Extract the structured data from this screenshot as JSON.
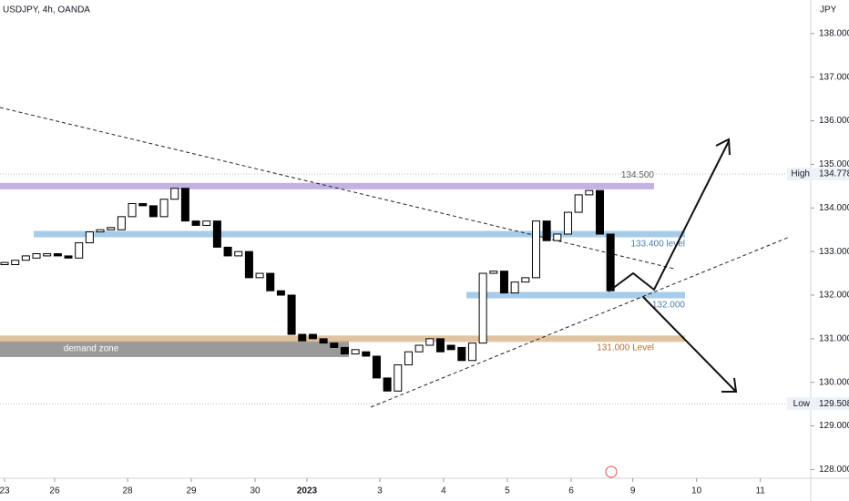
{
  "chart_data": {
    "type": "candlestick",
    "title": "USDJPY, 4h, OANDA",
    "y_unit": "JPY",
    "open": [
      132.7,
      132.7,
      132.8,
      132.85,
      132.9,
      132.95,
      132.9,
      132.85,
      133.2,
      133.45,
      133.5,
      133.5,
      133.8,
      134.1,
      134.05,
      133.8,
      134.2,
      134.45,
      133.7,
      133.6,
      133.7,
      133.1,
      132.9,
      133.0,
      132.4,
      132.5,
      132.1,
      132.0,
      131.1,
      131.1,
      131.0,
      130.9,
      130.8,
      130.65,
      130.7,
      130.6,
      130.1,
      129.8,
      130.4,
      130.7,
      130.85,
      131.0,
      130.85,
      130.8,
      130.5,
      130.9,
      132.5,
      132.55,
      132.05,
      132.3,
      132.4,
      133.7,
      133.25,
      133.4,
      133.9,
      134.3,
      134.4,
      133.4
    ],
    "high": {
      "name": "High",
      "value": 134.778,
      "label": "134.778"
    },
    "low": {
      "name": "Low",
      "value": 129.508,
      "label": "129.508"
    },
    "close": [
      132.75,
      132.8,
      132.9,
      132.95,
      132.95,
      132.9,
      132.85,
      133.2,
      133.45,
      133.5,
      133.55,
      133.8,
      134.1,
      134.05,
      133.8,
      134.2,
      134.45,
      133.7,
      133.6,
      133.7,
      133.1,
      132.9,
      133.0,
      132.4,
      132.5,
      132.1,
      132.0,
      131.1,
      130.95,
      131.0,
      130.9,
      130.8,
      130.65,
      130.75,
      130.6,
      130.1,
      129.8,
      130.4,
      130.7,
      130.85,
      131.0,
      130.7,
      130.75,
      130.5,
      130.9,
      132.5,
      132.55,
      132.05,
      132.3,
      132.4,
      133.7,
      133.25,
      133.4,
      133.9,
      134.3,
      134.4,
      133.4,
      132.1
    ],
    "xlim": [
      -0.43,
      75.84
    ],
    "ylim": [
      127.8,
      138.77
    ],
    "xticks": [
      {
        "value": 0,
        "label": "23"
      },
      {
        "value": 4.71,
        "label": "26"
      },
      {
        "value": 11.57,
        "label": "28"
      },
      {
        "value": 17.57,
        "label": "29"
      },
      {
        "value": 23.57,
        "label": "30"
      },
      {
        "value": 28.45,
        "label": "2023"
      },
      {
        "value": 35.3,
        "label": "3"
      },
      {
        "value": 41.3,
        "label": "4"
      },
      {
        "value": 47.3,
        "label": "5"
      },
      {
        "value": 53.3,
        "label": "6"
      },
      {
        "value": 59.1,
        "label": "9"
      },
      {
        "value": 65.1,
        "label": "10"
      },
      {
        "value": 71.1,
        "label": "11"
      }
    ],
    "yticks": [
      {
        "value": 128,
        "label": "128.000"
      },
      {
        "value": 129,
        "label": "129.000"
      },
      {
        "value": 130,
        "label": "130.000"
      },
      {
        "value": 131,
        "label": "131.000"
      },
      {
        "value": 132,
        "label": "132.000"
      },
      {
        "value": 133,
        "label": "133.000"
      },
      {
        "value": 134,
        "label": "134.000"
      },
      {
        "value": 135,
        "label": "135.000"
      },
      {
        "value": 136,
        "label": "136.000"
      },
      {
        "value": 137,
        "label": "137.000"
      },
      {
        "value": 138,
        "label": "138.000"
      }
    ],
    "levels": [
      {
        "value": 134.5,
        "label": "134.500",
        "color": "#b39ddb"
      },
      {
        "value": 133.4,
        "label": "133.400 level",
        "color": "#90bfe4"
      },
      {
        "value": 132.0,
        "label": "132.000",
        "color": "#90bfe4"
      },
      {
        "value": 131.0,
        "label": "131.000 Level",
        "color": "#d8b48a"
      }
    ],
    "demand_zone": {
      "label": "demand zone",
      "top": 130.95,
      "bottom": 130.58
    }
  }
}
